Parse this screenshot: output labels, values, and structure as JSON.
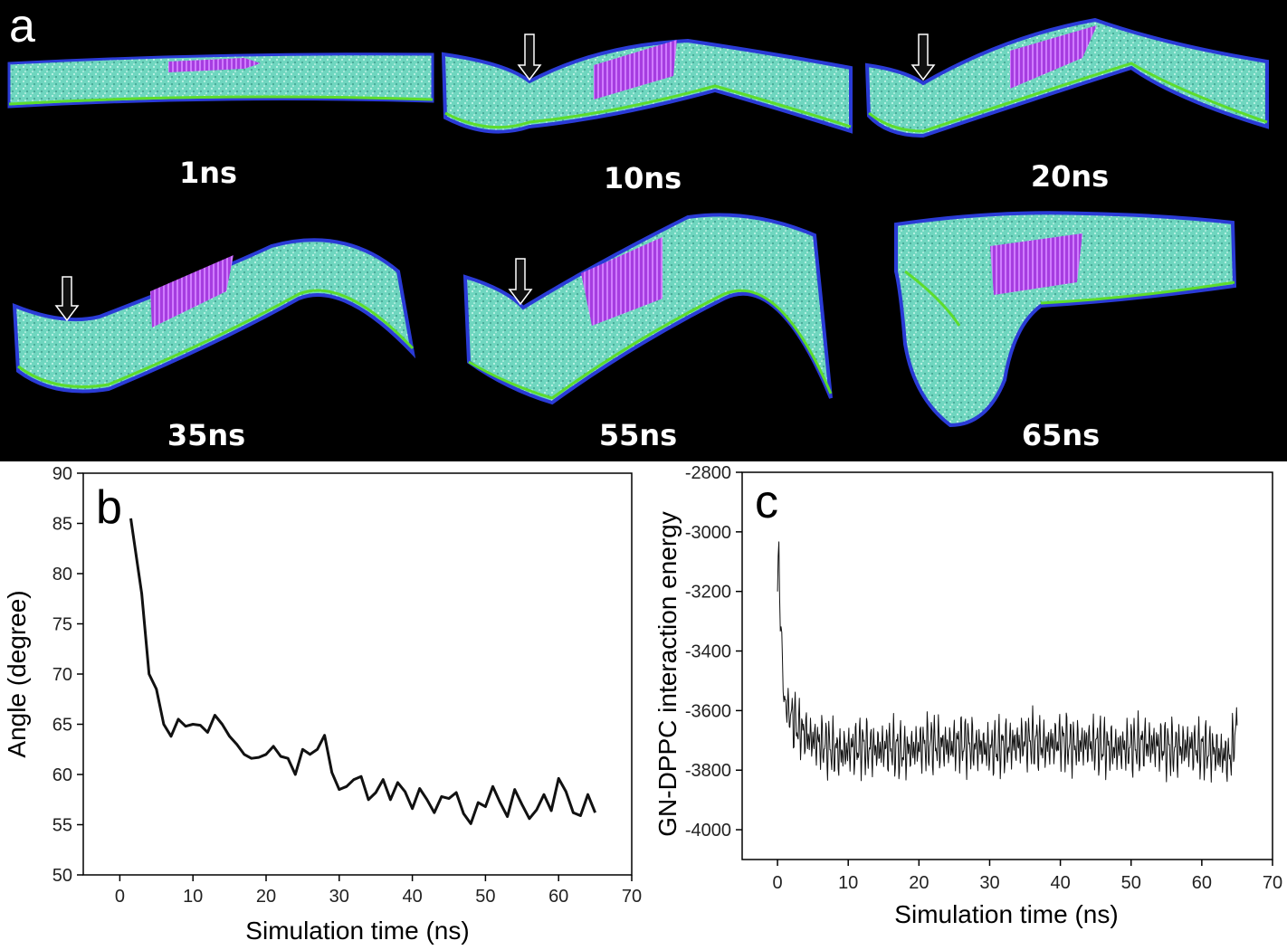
{
  "panel_a": {
    "letter": "a",
    "snapshots": [
      {
        "label": "1ns"
      },
      {
        "label": "10ns"
      },
      {
        "label": "20ns"
      },
      {
        "label": "35ns"
      },
      {
        "label": "55ns"
      },
      {
        "label": "65ns"
      }
    ],
    "colors": {
      "membrane": "#6fd6bf",
      "membrane_edge": "#2a3bd6",
      "headgroup": "#5ddc2c",
      "graphene": "#b040e8",
      "background": "#000000"
    }
  },
  "chart_data": [
    {
      "panel": "b",
      "type": "line",
      "xlabel": "Simulation time (ns)",
      "ylabel": "Angle (degree)",
      "xlim": [
        -5,
        70
      ],
      "ylim": [
        50,
        90
      ],
      "xticks": [
        0,
        10,
        20,
        30,
        40,
        50,
        60,
        70
      ],
      "xtick_labels": [
        "0",
        "10",
        "20",
        "30",
        "40",
        "50",
        "60",
        "70"
      ],
      "yticks": [
        50,
        55,
        60,
        65,
        70,
        75,
        80,
        85,
        90
      ],
      "ytick_labels": [
        "50",
        "55",
        "60",
        "65",
        "70",
        "75",
        "80",
        "85",
        "90"
      ],
      "series": [
        {
          "color": "#111111",
          "x": [
            1.5,
            3,
            4,
            5,
            6,
            7,
            8,
            9,
            10,
            11,
            12,
            13,
            14,
            15,
            16,
            17,
            18,
            19,
            20,
            21,
            22,
            23,
            24,
            25,
            26,
            27,
            28,
            29,
            30,
            31,
            32,
            33,
            34,
            35,
            36,
            37,
            38,
            39,
            40,
            41,
            42,
            43,
            44,
            45,
            46,
            47,
            48,
            49,
            50,
            51,
            52,
            53,
            54,
            55,
            56,
            57,
            58,
            59,
            60,
            61,
            62,
            63,
            64,
            65
          ],
          "y": [
            85.5,
            78,
            70,
            68.5,
            65,
            63.8,
            65.5,
            64.8,
            65,
            64.9,
            64.2,
            65.9,
            65,
            63.8,
            63,
            62,
            61.6,
            61.7,
            62,
            62.8,
            61.8,
            61.6,
            60,
            62.5,
            62,
            62.5,
            63.9,
            60.2,
            58.5,
            58.8,
            59.5,
            59.8,
            57.5,
            58.2,
            59.5,
            57.5,
            59.2,
            58.3,
            56.6,
            58.6,
            57.5,
            56.2,
            57.8,
            57.6,
            58.2,
            56.1,
            55.1,
            57.2,
            56.8,
            58.8,
            57.2,
            55.8,
            58.5,
            57,
            55.6,
            56.5,
            58,
            56.4,
            59.6,
            58.3,
            56.2,
            55.9,
            58,
            56.2
          ]
        }
      ]
    },
    {
      "panel": "c",
      "type": "line",
      "xlabel": "Simulation time (ns)",
      "ylabel": "GN-DPPC interaction energy",
      "xlim": [
        -5,
        70
      ],
      "ylim": [
        -4100,
        -2800
      ],
      "xticks": [
        0,
        10,
        20,
        30,
        40,
        50,
        60,
        70
      ],
      "xtick_labels": [
        "0",
        "10",
        "20",
        "30",
        "40",
        "50",
        "60",
        "70"
      ],
      "yticks": [
        -4000,
        -3800,
        -3600,
        -3400,
        -3200,
        -3000,
        -2800
      ],
      "ytick_labels": [
        "-4000",
        "-3800",
        "-3600",
        "-3400",
        "-3200",
        "-3000",
        "-2800"
      ],
      "series": [
        {
          "color": "#111111",
          "x": [
            0,
            0.2,
            0.4,
            0.6,
            0.8,
            1,
            1.5,
            2,
            2.5,
            3,
            4,
            5,
            6,
            7,
            8,
            9,
            10,
            12,
            14,
            16,
            18,
            20,
            22,
            24,
            26,
            28,
            30,
            32,
            34,
            36,
            38,
            40,
            42,
            44,
            46,
            48,
            50,
            52,
            54,
            56,
            58,
            60,
            62,
            63,
            64,
            64.5,
            65
          ],
          "y": [
            -3200,
            -3030,
            -3280,
            -3420,
            -3500,
            -3560,
            -3600,
            -3620,
            -3640,
            -3660,
            -3680,
            -3700,
            -3710,
            -3720,
            -3730,
            -3740,
            -3730,
            -3720,
            -3730,
            -3720,
            -3740,
            -3720,
            -3710,
            -3720,
            -3710,
            -3720,
            -3730,
            -3720,
            -3710,
            -3700,
            -3720,
            -3700,
            -3720,
            -3710,
            -3720,
            -3730,
            -3720,
            -3710,
            -3720,
            -3730,
            -3720,
            -3730,
            -3740,
            -3750,
            -3760,
            -3700,
            -3650
          ]
        }
      ]
    }
  ]
}
